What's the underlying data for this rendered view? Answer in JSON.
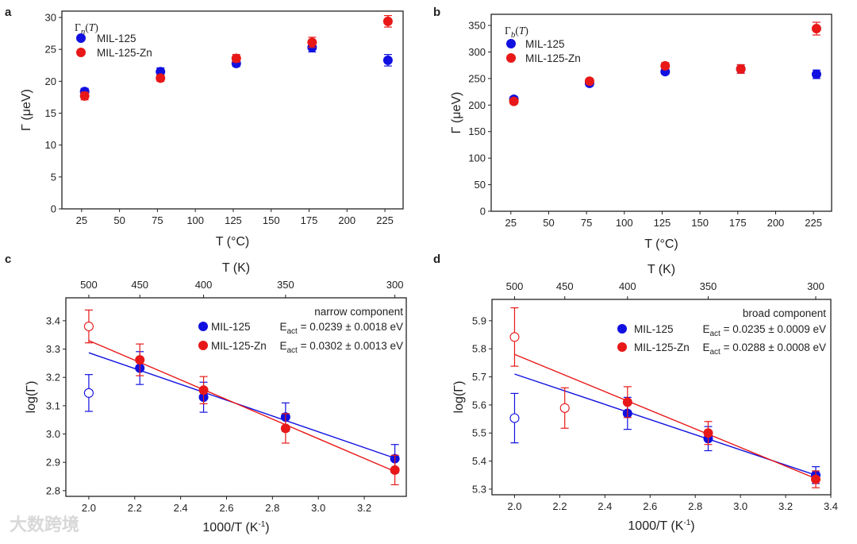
{
  "watermark": "大数跨境",
  "colors": {
    "MIL-125": "#1010e0",
    "MIL-125-Zn": "#e81818",
    "frame": "#222222"
  },
  "chart_data": [
    {
      "panel": "a",
      "type": "scatter",
      "xlabel": "T (°C)",
      "ylabel": "Γ (μeV)",
      "xlim": [
        12,
        237
      ],
      "ylim": [
        0,
        31
      ],
      "xticks": [
        25,
        50,
        75,
        100,
        125,
        150,
        175,
        200,
        225
      ],
      "yticks": [
        0,
        5,
        10,
        15,
        20,
        25,
        30
      ],
      "legend": {
        "title": {
          "main": "Γ",
          "sub": "n",
          "arg": "(T)"
        },
        "position": "top-left"
      },
      "series": [
        {
          "name": "MIL-125",
          "color": "#1010e0",
          "points": [
            {
              "x": 27,
              "y": 18.4,
              "err": 0.5
            },
            {
              "x": 77,
              "y": 21.5,
              "err": 0.6
            },
            {
              "x": 127,
              "y": 22.8,
              "err": 0.5
            },
            {
              "x": 177,
              "y": 25.3,
              "err": 0.7
            },
            {
              "x": 227,
              "y": 23.3,
              "err": 0.9
            }
          ]
        },
        {
          "name": "MIL-125-Zn",
          "color": "#e81818",
          "points": [
            {
              "x": 27,
              "y": 17.7,
              "err": 0.6
            },
            {
              "x": 77,
              "y": 20.5,
              "err": 0.5
            },
            {
              "x": 127,
              "y": 23.6,
              "err": 0.6
            },
            {
              "x": 177,
              "y": 26.1,
              "err": 0.8
            },
            {
              "x": 227,
              "y": 29.4,
              "err": 0.9
            }
          ]
        }
      ]
    },
    {
      "panel": "b",
      "type": "scatter",
      "xlabel": "T (°C)",
      "ylabel": "Γ (μeV)",
      "xlim": [
        12,
        237
      ],
      "ylim": [
        0,
        371
      ],
      "xticks": [
        25,
        50,
        75,
        100,
        125,
        150,
        175,
        200,
        225
      ],
      "yticks": [
        0,
        50,
        100,
        150,
        200,
        250,
        300,
        350
      ],
      "legend": {
        "title": {
          "main": "Γ",
          "sub": "b",
          "arg": "(T)"
        },
        "position": "top-left"
      },
      "series": [
        {
          "name": "MIL-125",
          "color": "#1010e0",
          "points": [
            {
              "x": 27,
              "y": 211,
              "err": 5
            },
            {
              "x": 77,
              "y": 241,
              "err": 5
            },
            {
              "x": 127,
              "y": 263,
              "err": 5
            },
            {
              "x": 177,
              "y": 268,
              "err": 8
            },
            {
              "x": 227,
              "y": 258,
              "err": 8
            }
          ]
        },
        {
          "name": "MIL-125-Zn",
          "color": "#e81818",
          "points": [
            {
              "x": 27,
              "y": 207,
              "err": 5
            },
            {
              "x": 77,
              "y": 245,
              "err": 5
            },
            {
              "x": 127,
              "y": 274,
              "err": 6
            },
            {
              "x": 177,
              "y": 268,
              "err": 8
            },
            {
              "x": 227,
              "y": 344,
              "err": 12
            }
          ]
        }
      ]
    },
    {
      "panel": "c",
      "type": "scatter",
      "xlabel": "1000/T (K-1)",
      "xlabel_main": "1000/T (K",
      "xlabel_sup": "-1",
      "xlabel_end": ")",
      "ylabel": "log(Γ)",
      "top_xlabel": "T (K)",
      "top_ticks": [
        {
          "label": "500",
          "x": 2.0
        },
        {
          "label": "450",
          "x": 2.2222
        },
        {
          "label": "400",
          "x": 2.5
        },
        {
          "label": "350",
          "x": 2.8571
        },
        {
          "label": "300",
          "x": 3.3333
        }
      ],
      "xlim": [
        1.9,
        3.383
      ],
      "ylim": [
        2.78,
        3.481
      ],
      "xticks": [
        2.0,
        2.2,
        2.4,
        2.6,
        2.8,
        3.0,
        3.2
      ],
      "yticks": [
        2.8,
        2.9,
        3.0,
        3.1,
        3.2,
        3.3,
        3.4
      ],
      "legend": {
        "heading": "narrow component",
        "position": "top-right",
        "entries": [
          {
            "name": "MIL-125",
            "e": "E",
            "sub": "act",
            "value": " = 0.0239 ± 0.0018 eV"
          },
          {
            "name": "MIL-125-Zn",
            "e": "E",
            "sub": "act",
            "value": " = 0.0302 ± 0.0013 eV"
          }
        ]
      },
      "series": [
        {
          "name": "MIL-125",
          "color": "#1010e0",
          "fit": [
            [
              2.0,
              3.287
            ],
            [
              3.333,
              2.915
            ]
          ],
          "points": [
            {
              "x": 2.0,
              "y": 3.145,
              "err": 0.065,
              "open": true
            },
            {
              "x": 2.2222,
              "y": 3.233,
              "err": 0.058
            },
            {
              "x": 2.5,
              "y": 3.13,
              "err": 0.053
            },
            {
              "x": 2.8571,
              "y": 3.06,
              "err": 0.05
            },
            {
              "x": 3.3333,
              "y": 2.913,
              "err": 0.05
            }
          ]
        },
        {
          "name": "MIL-125-Zn",
          "color": "#e81818",
          "fit": [
            [
              2.0,
              3.33
            ],
            [
              3.333,
              2.868
            ]
          ],
          "points": [
            {
              "x": 2.0,
              "y": 3.38,
              "err": 0.058,
              "open": true
            },
            {
              "x": 2.2222,
              "y": 3.262,
              "err": 0.056
            },
            {
              "x": 2.5,
              "y": 3.155,
              "err": 0.048
            },
            {
              "x": 2.8571,
              "y": 3.02,
              "err": 0.052
            },
            {
              "x": 3.3333,
              "y": 2.873,
              "err": 0.052
            }
          ]
        }
      ]
    },
    {
      "panel": "d",
      "type": "scatter",
      "xlabel": "1000/T (K-1)",
      "xlabel_main": "1000/T (K",
      "xlabel_sup": "-1",
      "xlabel_end": ")",
      "ylabel": "log(Γ)",
      "top_xlabel": "T (K)",
      "top_ticks": [
        {
          "label": "500",
          "x": 2.0
        },
        {
          "label": "450",
          "x": 2.2222
        },
        {
          "label": "400",
          "x": 2.5
        },
        {
          "label": "350",
          "x": 2.8571
        },
        {
          "label": "300",
          "x": 3.3333
        }
      ],
      "xlim": [
        1.9,
        3.4
      ],
      "ylim": [
        5.28,
        5.976
      ],
      "xticks": [
        2.0,
        2.2,
        2.4,
        2.6,
        2.8,
        3.0,
        3.2,
        3.4
      ],
      "yticks": [
        5.3,
        5.4,
        5.5,
        5.6,
        5.7,
        5.8,
        5.9
      ],
      "legend": {
        "heading": "broad component",
        "position": "top-right",
        "entries": [
          {
            "name": "MIL-125",
            "e": "E",
            "sub": "act",
            "value": " = 0.0235 ± 0.0009 eV"
          },
          {
            "name": "MIL-125-Zn",
            "e": "E",
            "sub": "act",
            "value": " = 0.0288 ± 0.0008 eV"
          }
        ]
      },
      "series": [
        {
          "name": "MIL-125",
          "color": "#1010e0",
          "fit": [
            [
              2.0,
              5.71
            ],
            [
              3.333,
              5.35
            ]
          ],
          "points": [
            {
              "x": 2.0,
              "y": 5.553,
              "err": 0.088,
              "open": true
            },
            {
              "x": 2.5,
              "y": 5.57,
              "err": 0.057
            },
            {
              "x": 2.8571,
              "y": 5.48,
              "err": 0.043
            },
            {
              "x": 3.3333,
              "y": 5.35,
              "err": 0.03
            }
          ]
        },
        {
          "name": "MIL-125-Zn",
          "color": "#e81818",
          "fit": [
            [
              2.0,
              5.78
            ],
            [
              3.333,
              5.338
            ]
          ],
          "points": [
            {
              "x": 2.0,
              "y": 5.842,
              "err": 0.104,
              "open": true
            },
            {
              "x": 2.2222,
              "y": 5.589,
              "err": 0.072,
              "open": true
            },
            {
              "x": 2.5,
              "y": 5.61,
              "err": 0.055
            },
            {
              "x": 2.8571,
              "y": 5.5,
              "err": 0.041
            },
            {
              "x": 3.3333,
              "y": 5.335,
              "err": 0.03
            }
          ]
        }
      ]
    }
  ]
}
